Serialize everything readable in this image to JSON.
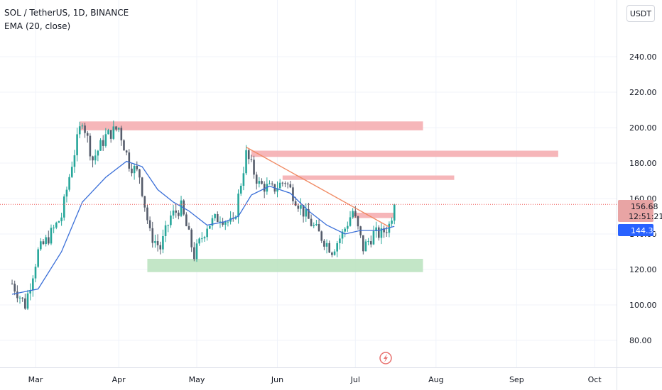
{
  "header": {
    "symbol_line": "SOL / TetherUS, 1D, BINANCE",
    "indicator_line": "EMA (20, close)",
    "currency_button": "USDT"
  },
  "price_tags": {
    "last_price": "156.68",
    "countdown": "12:51:21",
    "ema_value": "144.31",
    "last_price_color": "#e8a4a4",
    "ema_color": "#2962ff"
  },
  "colors": {
    "up": "#26a69a",
    "down": "#555c6b",
    "ema": "#3a6fd8",
    "resistance_zone": "#f5a9ad",
    "support_zone": "#b9e2bd",
    "trendline": "#f08a63",
    "last_price_line": "#ef5350"
  },
  "chart_data": {
    "type": "candlestick",
    "y_axis_ticks": [
      "240.00",
      "220.00",
      "200.00",
      "180.00",
      "160.00",
      "140.00",
      "120.00",
      "100.00",
      "80.00"
    ],
    "x_axis_ticks": [
      "Mar",
      "Apr",
      "May",
      "Jun",
      "Jul",
      "Aug",
      "Sep",
      "Oct"
    ],
    "ylim": [
      72,
      262
    ],
    "last_price": 156.68,
    "ema_last": 144.31,
    "indicator": "EMA (20, close)",
    "price_path": [
      {
        "date": "2024-02-20",
        "close": 112
      },
      {
        "date": "2024-02-25",
        "close": 100
      },
      {
        "date": "2024-03-01",
        "close": 130
      },
      {
        "date": "2024-03-05",
        "close": 138
      },
      {
        "date": "2024-03-10",
        "close": 150
      },
      {
        "date": "2024-03-14",
        "close": 180
      },
      {
        "date": "2024-03-18",
        "close": 205
      },
      {
        "date": "2024-03-22",
        "close": 182
      },
      {
        "date": "2024-03-27",
        "close": 195
      },
      {
        "date": "2024-04-01",
        "close": 200
      },
      {
        "date": "2024-04-05",
        "close": 180
      },
      {
        "date": "2024-04-09",
        "close": 173
      },
      {
        "date": "2024-04-13",
        "close": 140
      },
      {
        "date": "2024-04-17",
        "close": 132
      },
      {
        "date": "2024-04-21",
        "close": 150
      },
      {
        "date": "2024-04-25",
        "close": 155
      },
      {
        "date": "2024-04-30",
        "close": 128
      },
      {
        "date": "2024-05-05",
        "close": 145
      },
      {
        "date": "2024-05-10",
        "close": 150
      },
      {
        "date": "2024-05-15",
        "close": 145
      },
      {
        "date": "2024-05-20",
        "close": 185
      },
      {
        "date": "2024-05-25",
        "close": 168
      },
      {
        "date": "2024-05-30",
        "close": 165
      },
      {
        "date": "2024-06-04",
        "close": 170
      },
      {
        "date": "2024-06-08",
        "close": 160
      },
      {
        "date": "2024-06-12",
        "close": 150
      },
      {
        "date": "2024-06-17",
        "close": 140
      },
      {
        "date": "2024-06-22",
        "close": 131
      },
      {
        "date": "2024-06-26",
        "close": 140
      },
      {
        "date": "2024-06-30",
        "close": 153
      },
      {
        "date": "2024-07-04",
        "close": 132
      },
      {
        "date": "2024-07-08",
        "close": 140
      },
      {
        "date": "2024-07-11",
        "close": 140
      },
      {
        "date": "2024-07-14",
        "close": 145
      },
      {
        "date": "2024-07-16",
        "close": 156.68
      }
    ],
    "ema_path": [
      {
        "date": "2024-02-20",
        "value": 106
      },
      {
        "date": "2024-03-01",
        "value": 109
      },
      {
        "date": "2024-03-10",
        "value": 130
      },
      {
        "date": "2024-03-18",
        "value": 158
      },
      {
        "date": "2024-03-27",
        "value": 172
      },
      {
        "date": "2024-04-04",
        "value": 181
      },
      {
        "date": "2024-04-10",
        "value": 178
      },
      {
        "date": "2024-04-16",
        "value": 165
      },
      {
        "date": "2024-04-22",
        "value": 158
      },
      {
        "date": "2024-04-28",
        "value": 153
      },
      {
        "date": "2024-05-05",
        "value": 145
      },
      {
        "date": "2024-05-12",
        "value": 147
      },
      {
        "date": "2024-05-17",
        "value": 150
      },
      {
        "date": "2024-05-22",
        "value": 162
      },
      {
        "date": "2024-05-29",
        "value": 167
      },
      {
        "date": "2024-06-06",
        "value": 163
      },
      {
        "date": "2024-06-13",
        "value": 153
      },
      {
        "date": "2024-06-20",
        "value": 145
      },
      {
        "date": "2024-06-27",
        "value": 140
      },
      {
        "date": "2024-07-03",
        "value": 142
      },
      {
        "date": "2024-07-10",
        "value": 142
      },
      {
        "date": "2024-07-16",
        "value": 144.31
      }
    ],
    "zones": [
      {
        "type": "resistance",
        "from": "2024-03-17",
        "to": "2024-07-27",
        "low": 198.5,
        "high": 203.5
      },
      {
        "type": "resistance",
        "from": "2024-05-22",
        "to": "2024-09-17",
        "low": 183.5,
        "high": 187
      },
      {
        "type": "resistance",
        "from": "2024-06-03",
        "to": "2024-08-08",
        "low": 170.5,
        "high": 173
      },
      {
        "type": "resistance",
        "from": "2024-06-30",
        "to": "2024-07-16",
        "low": 149,
        "high": 152
      },
      {
        "type": "support",
        "from": "2024-04-12",
        "to": "2024-07-27",
        "low": 118.5,
        "high": 126
      }
    ],
    "trendline": {
      "from": {
        "date": "2024-05-20",
        "value": 189
      },
      "to": {
        "date": "2024-07-14",
        "value": 144
      }
    }
  }
}
